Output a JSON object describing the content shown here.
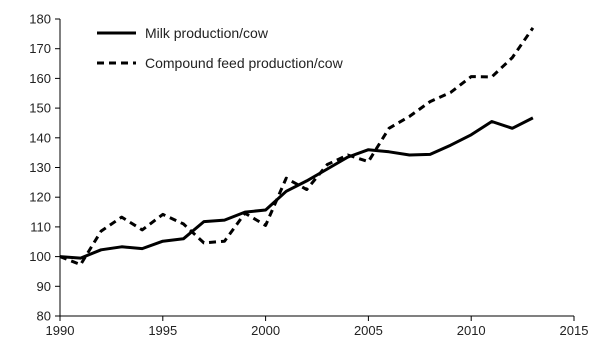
{
  "chart_data": {
    "type": "line",
    "title": "",
    "xlabel": "",
    "ylabel": "",
    "xlim": [
      1990,
      2015
    ],
    "ylim": [
      80,
      180
    ],
    "xticks": [
      1990,
      1995,
      2000,
      2005,
      2010,
      2015
    ],
    "yticks": [
      80,
      90,
      100,
      110,
      120,
      130,
      140,
      150,
      160,
      170,
      180
    ],
    "grid": false,
    "legend": "top-left",
    "series": [
      {
        "name": "Milk production/cow",
        "style": "solid",
        "color": "#000000",
        "x": [
          1990,
          1991,
          1992,
          1993,
          1994,
          1995,
          1996,
          1997,
          1998,
          1999,
          2000,
          2001,
          2002,
          2003,
          2004,
          2005,
          2006,
          2007,
          2008,
          2009,
          2010,
          2011,
          2012,
          2013
        ],
        "y": [
          100,
          99.5,
          102.3,
          103.3,
          102.7,
          105.2,
          106,
          111.8,
          112.3,
          115,
          115.7,
          122,
          125.5,
          129.5,
          133.5,
          136,
          135.3,
          134.2,
          134.4,
          137.5,
          141,
          145.5,
          143.2,
          146.7
        ]
      },
      {
        "name": "Compound feed production/cow",
        "style": "dashed",
        "color": "#000000",
        "x": [
          1990,
          1991,
          1992,
          1993,
          1994,
          1995,
          1996,
          1997,
          1998,
          1999,
          2000,
          2001,
          2002,
          2003,
          2004,
          2005,
          2006,
          2007,
          2008,
          2009,
          2010,
          2011,
          2012,
          2013
        ],
        "y": [
          100,
          97.3,
          108.6,
          113.3,
          109,
          114.2,
          111,
          104.6,
          105.2,
          114.6,
          110.5,
          126.4,
          122.6,
          131,
          134.2,
          132,
          143.2,
          147.2,
          152.2,
          155.3,
          160.6,
          160.5,
          167,
          177
        ]
      }
    ]
  }
}
